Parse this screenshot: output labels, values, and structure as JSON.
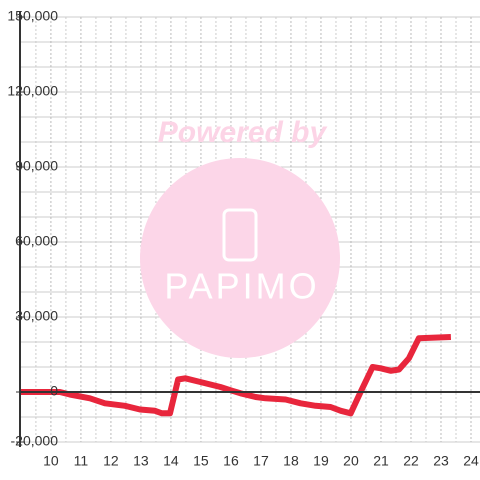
{
  "chart_data": {
    "type": "line",
    "watermark": {
      "text": "Powered by",
      "logo": "PAPIMO"
    },
    "xlim": [
      8.97,
      24.3
    ],
    "xticks": [
      10,
      11,
      12,
      13,
      14,
      15,
      16,
      17,
      18,
      19,
      20,
      21,
      22,
      23,
      24
    ],
    "xminor": [
      9.5,
      10.5,
      11.5,
      12.5,
      13.5,
      14.5,
      15.5,
      16.5,
      17.5,
      18.5,
      19.5,
      20.5,
      21.5,
      22.5,
      23.5
    ],
    "ylim": [
      -20000,
      150000
    ],
    "yticks": [
      {
        "value": -20000,
        "label": "-20,000"
      },
      0,
      {
        "value": 30000,
        "label": "30,000"
      },
      {
        "value": 60000,
        "label": "60,000"
      },
      {
        "value": 90000,
        "label": "90,000"
      },
      {
        "value": 120000,
        "label": "120,000"
      },
      {
        "value": 150000,
        "label": "150,000"
      }
    ],
    "yminor": [
      -10000,
      10000,
      20000,
      40000,
      50000,
      70000,
      80000,
      100000,
      110000,
      130000,
      140000
    ],
    "grid": true,
    "series": [
      {
        "color": "#e8263c",
        "x": [
          8.97,
          10.3,
          10.63,
          11.3,
          11.8,
          12.47,
          12.97,
          13.47,
          13.7,
          13.97,
          14.24,
          14.48,
          14.98,
          15.65,
          16.05,
          16.32,
          16.82,
          17.15,
          17.82,
          18.32,
          18.82,
          19.32,
          19.66,
          19.99,
          20.32,
          20.52,
          20.72,
          20.99,
          21.33,
          21.6,
          21.93,
          22.26,
          23.33
        ],
        "values": [
          0,
          0,
          -1000,
          -2500,
          -4500,
          -5500,
          -7000,
          -7500,
          -8500,
          -8500,
          5000,
          5500,
          4000,
          2000,
          500,
          -500,
          -2000,
          -2500,
          -3000,
          -4500,
          -5500,
          -6000,
          -7500,
          -8500,
          0,
          5000,
          10000,
          9500,
          8500,
          9000,
          13500,
          21500,
          22000
        ]
      }
    ]
  }
}
